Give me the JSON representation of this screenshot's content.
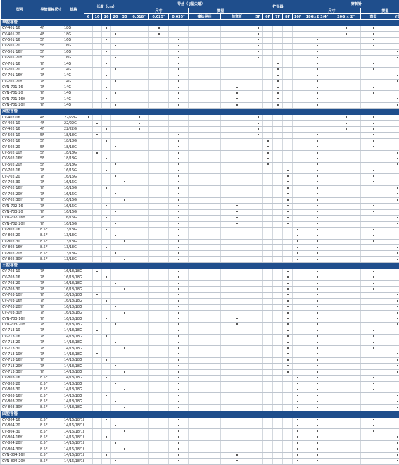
{
  "header": {
    "model": "型号",
    "fr": "导管规格尺寸",
    "gauge": "规格",
    "length": "长度（cm）",
    "guidewire": "导丝（-J型尖端）",
    "size": "尺寸",
    "type": "类型",
    "dilator": "扩张器",
    "needle": "穿刺针",
    "needle_size": "尺寸",
    "needle_type": "类型",
    "nitinol": "镍钛导丝",
    "kink": "防弯折",
    "len_cols": [
      "6",
      "10",
      "16",
      "20",
      "30"
    ],
    "gw_sizes": [
      "0.018\"",
      "0.025\"",
      "0.035\""
    ],
    "dil_cols": [
      "5F",
      "6F",
      "7F",
      "8F",
      "10F"
    ],
    "needle_sizes": [
      "18G×2 3/4\"",
      "20G × 2\""
    ],
    "needle_types": [
      "直型",
      "Y型"
    ]
  },
  "col_order": [
    "L6",
    "L10",
    "L16",
    "L20",
    "L30",
    "S018",
    "S025",
    "S035",
    "GN",
    "GK",
    "D5",
    "D6",
    "D7",
    "D8",
    "D10",
    "N18",
    "N20",
    "NS",
    "NY"
  ],
  "sections": [
    {
      "title": "单腔导管",
      "rows": [
        {
          "m": "CV-401-16",
          "f": "4F",
          "g": "18G",
          "d": [
            "L16",
            "S025",
            "D5",
            "N20",
            "NS"
          ]
        },
        {
          "m": "CV-401-20",
          "f": "4F",
          "g": "18G",
          "d": [
            "L20",
            "S025",
            "D5",
            "N20",
            "NS"
          ]
        },
        {
          "m": "CV-501-16",
          "f": "5F",
          "g": "16G",
          "d": [
            "L16",
            "S035",
            "D5",
            "N18",
            "NS"
          ]
        },
        {
          "m": "CV-501-20",
          "f": "5F",
          "g": "16G",
          "d": [
            "L20",
            "S035",
            "D5",
            "N18",
            "NS"
          ]
        },
        {
          "m": "CV-501-16Y",
          "f": "5F",
          "g": "16G",
          "d": [
            "L16",
            "S035",
            "D5",
            "N18",
            "NY"
          ]
        },
        {
          "m": "CV-501-20Y",
          "f": "5F",
          "g": "16G",
          "d": [
            "L20",
            "S035",
            "D5",
            "N18",
            "NY"
          ]
        },
        {
          "m": "CV-701-16",
          "f": "7F",
          "g": "14G",
          "d": [
            "L16",
            "S035",
            "D7",
            "N18",
            "NS"
          ]
        },
        {
          "m": "CV-701-20",
          "f": "7F",
          "g": "14G",
          "d": [
            "L20",
            "S035",
            "D7",
            "N18",
            "NS"
          ]
        },
        {
          "m": "CV-701-16Y",
          "f": "7F",
          "g": "14G",
          "d": [
            "L16",
            "S035",
            "D7",
            "N18",
            "NY"
          ]
        },
        {
          "m": "CV-701-20Y",
          "f": "7F",
          "g": "14G",
          "d": [
            "L20",
            "S035",
            "D7",
            "N18",
            "NY"
          ]
        },
        {
          "m": "CVN-701-16",
          "f": "7F",
          "g": "14G",
          "d": [
            "L16",
            "S035",
            "GK",
            "D7",
            "N18",
            "NS"
          ]
        },
        {
          "m": "CVN-701-20",
          "f": "7F",
          "g": "14G",
          "d": [
            "L20",
            "S035",
            "GK",
            "D7",
            "N18",
            "NS"
          ]
        },
        {
          "m": "CVN-701-16Y",
          "f": "7F",
          "g": "14G",
          "d": [
            "L16",
            "S035",
            "GK",
            "D7",
            "N18",
            "NY"
          ]
        },
        {
          "m": "CVN-701-20Y",
          "f": "7F",
          "g": "14G",
          "d": [
            "L20",
            "S035",
            "GK",
            "D7",
            "N18",
            "NY"
          ]
        }
      ]
    },
    {
      "title": "双腔导管",
      "rows": [
        {
          "m": "CV-402-06",
          "f": "4F",
          "g": "22/22G",
          "d": [
            "L6",
            "S018",
            "D5",
            "N20",
            "NS"
          ]
        },
        {
          "m": "CV-402-10",
          "f": "4F",
          "g": "22/22G",
          "d": [
            "L10",
            "S018",
            "D5",
            "N20",
            "NS"
          ]
        },
        {
          "m": "CV-402-16",
          "f": "4F",
          "g": "22/22G",
          "d": [
            "L16",
            "S018",
            "D5",
            "N20",
            "NS"
          ]
        },
        {
          "m": "CV-502-10",
          "f": "5F",
          "g": "18/18G",
          "d": [
            "L10",
            "S035",
            "D5",
            "N18",
            "NS"
          ]
        },
        {
          "m": "CV-502-16",
          "f": "5F",
          "g": "18/18G",
          "d": [
            "L16",
            "S035",
            "D6",
            "N18",
            "NS"
          ]
        },
        {
          "m": "CV-502-20",
          "f": "5F",
          "g": "18/18G",
          "d": [
            "L20",
            "S035",
            "D6",
            "N18",
            "NS"
          ]
        },
        {
          "m": "CV-502-10Y",
          "f": "5F",
          "g": "18/18G",
          "d": [
            "L10",
            "S035",
            "D6",
            "N18",
            "NY"
          ]
        },
        {
          "m": "CV-502-16Y",
          "f": "5F",
          "g": "18/18G",
          "d": [
            "L16",
            "S035",
            "D6",
            "N18",
            "NY"
          ]
        },
        {
          "m": "CV-502-20Y",
          "f": "5F",
          "g": "18/18G",
          "d": [
            "L20",
            "S035",
            "D6",
            "N18",
            "NY"
          ]
        },
        {
          "m": "CV-702-16",
          "f": "7F",
          "g": "16/16G",
          "d": [
            "L16",
            "S035",
            "D8",
            "N18",
            "NS"
          ]
        },
        {
          "m": "CV-702-20",
          "f": "7F",
          "g": "16/16G",
          "d": [
            "L20",
            "S035",
            "D8",
            "N18",
            "NS"
          ]
        },
        {
          "m": "CV-702-30",
          "f": "7F",
          "g": "16/16G",
          "d": [
            "L30",
            "S035",
            "D8",
            "N18",
            "NS"
          ]
        },
        {
          "m": "CV-702-16Y",
          "f": "7F",
          "g": "16/16G",
          "d": [
            "L16",
            "S035",
            "D8",
            "N18",
            "NY"
          ]
        },
        {
          "m": "CV-702-20Y",
          "f": "7F",
          "g": "16/16G",
          "d": [
            "L20",
            "S035",
            "D8",
            "N18",
            "NY"
          ]
        },
        {
          "m": "CV-702-30Y",
          "f": "7F",
          "g": "16/16G",
          "d": [
            "L30",
            "S035",
            "D8",
            "N18",
            "NY"
          ]
        },
        {
          "m": "CVN-702-16",
          "f": "7F",
          "g": "16/16G",
          "d": [
            "L16",
            "S035",
            "GK",
            "D8",
            "N18",
            "NS"
          ]
        },
        {
          "m": "CVN-703-20",
          "f": "7F",
          "g": "16/16G",
          "d": [
            "L20",
            "S035",
            "GK",
            "D8",
            "N18",
            "NS"
          ]
        },
        {
          "m": "CVN-702-16Y",
          "f": "7F",
          "g": "16/16G",
          "d": [
            "L16",
            "S035",
            "GK",
            "D8",
            "N18",
            "NY"
          ]
        },
        {
          "m": "CVN-702-20Y",
          "f": "7F",
          "g": "16/16G",
          "d": [
            "L20",
            "S035",
            "GK",
            "D8",
            "N18",
            "NY"
          ]
        },
        {
          "m": "CV-802-16",
          "f": "8.5F",
          "g": "13/13G",
          "d": [
            "L16",
            "S035",
            "D10",
            "N18",
            "NS"
          ]
        },
        {
          "m": "CV-802-20",
          "f": "8.5F",
          "g": "13/13G",
          "d": [
            "L20",
            "S035",
            "D10",
            "N18",
            "NS"
          ]
        },
        {
          "m": "CV-802-30",
          "f": "8.5F",
          "g": "13/13G",
          "d": [
            "L30",
            "S035",
            "D10",
            "N18",
            "NS"
          ]
        },
        {
          "m": "CV-802-16Y",
          "f": "8.5F",
          "g": "13/13G",
          "d": [
            "L16",
            "S035",
            "D10",
            "N18",
            "NY"
          ]
        },
        {
          "m": "CV-802-20Y",
          "f": "8.5F",
          "g": "13/13G",
          "d": [
            "L20",
            "S035",
            "D10",
            "N18",
            "NY"
          ]
        },
        {
          "m": "CV-802-30Y",
          "f": "8.5F",
          "g": "13/13G",
          "d": [
            "L30",
            "S035",
            "D10",
            "N18",
            "NY"
          ]
        }
      ]
    },
    {
      "title": "三腔导管",
      "rows": [
        {
          "m": "CV-703-10",
          "f": "7F",
          "g": "16/18/18G",
          "d": [
            "L10",
            "S035",
            "D8",
            "N18",
            "NS"
          ]
        },
        {
          "m": "CV-703-16",
          "f": "7F",
          "g": "16/18/18G",
          "d": [
            "L16",
            "S035",
            "D8",
            "N18",
            "NS"
          ]
        },
        {
          "m": "CV-703-20",
          "f": "7F",
          "g": "16/18/18G",
          "d": [
            "L20",
            "S035",
            "D8",
            "N18",
            "NS"
          ]
        },
        {
          "m": "CV-703-30",
          "f": "7F",
          "g": "16/18/18G",
          "d": [
            "L30",
            "S035",
            "D8",
            "N18",
            "NS"
          ]
        },
        {
          "m": "CV-703-10Y",
          "f": "7F",
          "g": "16/18/18G",
          "d": [
            "L10",
            "S035",
            "D8",
            "N18",
            "NY"
          ]
        },
        {
          "m": "CV-703-16Y",
          "f": "7F",
          "g": "16/18/18G",
          "d": [
            "L16",
            "S035",
            "D8",
            "N18",
            "NY"
          ]
        },
        {
          "m": "CV-703-20Y",
          "f": "7F",
          "g": "16/18/18G",
          "d": [
            "L20",
            "S035",
            "D8",
            "N18",
            "NY"
          ]
        },
        {
          "m": "CV-703-30Y",
          "f": "7F",
          "g": "16/18/18G",
          "d": [
            "L30",
            "S035",
            "D8",
            "N18",
            "NY"
          ]
        },
        {
          "m": "CVN-703-16Y",
          "f": "7F",
          "g": "16/18/18G",
          "d": [
            "L16",
            "S035",
            "GK",
            "D8",
            "N18",
            "NY"
          ]
        },
        {
          "m": "CVN-703-20Y",
          "f": "7F",
          "g": "16/18/18G",
          "d": [
            "L20",
            "S035",
            "GK",
            "D8",
            "N18",
            "NY"
          ]
        },
        {
          "m": "CV-713-10",
          "f": "7F",
          "g": "14/18/18G",
          "d": [
            "L10",
            "S035",
            "D8",
            "N18",
            "NS"
          ]
        },
        {
          "m": "CV-713-16",
          "f": "7F",
          "g": "14/18/18G",
          "d": [
            "L16",
            "S035",
            "D8",
            "N18",
            "NS"
          ]
        },
        {
          "m": "CV-713-20",
          "f": "7F",
          "g": "14/18/18G",
          "d": [
            "L20",
            "S035",
            "D8",
            "N18",
            "NS"
          ]
        },
        {
          "m": "CV-713-30",
          "f": "7F",
          "g": "14/18/18G",
          "d": [
            "L30",
            "S035",
            "D8",
            "N18",
            "NS"
          ]
        },
        {
          "m": "CV-713-10Y",
          "f": "7F",
          "g": "14/18/18G",
          "d": [
            "L10",
            "S035",
            "D8",
            "N18",
            "NY"
          ]
        },
        {
          "m": "CV-713-16Y",
          "f": "7F",
          "g": "14/18/18G",
          "d": [
            "L16",
            "S035",
            "D8",
            "N18",
            "NY"
          ]
        },
        {
          "m": "CV-713-20Y",
          "f": "7F",
          "g": "14/18/18G",
          "d": [
            "L20",
            "S035",
            "D8",
            "N18",
            "NY"
          ]
        },
        {
          "m": "CV-713-30Y",
          "f": "7F",
          "g": "14/18/18G",
          "d": [
            "L30",
            "S035",
            "D8",
            "N18",
            "NY"
          ]
        },
        {
          "m": "CV-803-16",
          "f": "8.5F",
          "g": "14/18/18G",
          "d": [
            "L16",
            "S035",
            "D10",
            "N18",
            "NS"
          ]
        },
        {
          "m": "CV-803-20",
          "f": "8.5F",
          "g": "14/18/18G",
          "d": [
            "L20",
            "S035",
            "D10",
            "N18",
            "NS"
          ]
        },
        {
          "m": "CV-803-30",
          "f": "8.5F",
          "g": "14/18/18G",
          "d": [
            "L30",
            "S035",
            "D10",
            "N18",
            "NS"
          ]
        },
        {
          "m": "CV-803-16Y",
          "f": "8.5F",
          "g": "14/18/18G",
          "d": [
            "L16",
            "S035",
            "D10",
            "N18",
            "NY"
          ]
        },
        {
          "m": "CV-803-20Y",
          "f": "8.5F",
          "g": "14/18/18G",
          "d": [
            "L20",
            "S035",
            "D10",
            "N18",
            "NY"
          ]
        },
        {
          "m": "CV-803-30Y",
          "f": "8.5F",
          "g": "14/18/18G",
          "d": [
            "L30",
            "S035",
            "D10",
            "N18",
            "NY"
          ]
        }
      ]
    },
    {
      "title": "四腔导管",
      "rows": [
        {
          "m": "CV-804-16",
          "f": "8.5F",
          "g": "14/16/18/18G",
          "d": [
            "L16",
            "S035",
            "D10",
            "N18",
            "NS"
          ]
        },
        {
          "m": "CV-804-20",
          "f": "8.5F",
          "g": "14/16/18/18G",
          "d": [
            "L20",
            "S035",
            "D10",
            "N18",
            "NS"
          ]
        },
        {
          "m": "CV-804-30",
          "f": "8.5F",
          "g": "14/16/18/18G",
          "d": [
            "L30",
            "S035",
            "D10",
            "N18",
            "NS"
          ]
        },
        {
          "m": "CV-804-16Y",
          "f": "8.5F",
          "g": "14/16/18/18G",
          "d": [
            "L16",
            "S035",
            "D10",
            "N18",
            "NY"
          ]
        },
        {
          "m": "CV-804-20Y",
          "f": "8.5F",
          "g": "14/16/18/18G",
          "d": [
            "L20",
            "S035",
            "D10",
            "N18",
            "NY"
          ]
        },
        {
          "m": "CV-804-30Y",
          "f": "8.5F",
          "g": "14/16/18/18G",
          "d": [
            "L30",
            "S035",
            "D10",
            "N18",
            "NY"
          ]
        },
        {
          "m": "CVN-804-16Y",
          "f": "8.5F",
          "g": "14/16/18/18G",
          "d": [
            "L16",
            "S035",
            "GK",
            "D10",
            "N18",
            "NY"
          ]
        },
        {
          "m": "CVN-804-20Y",
          "f": "8.5F",
          "g": "14/16/18/18G",
          "d": [
            "L20",
            "S035",
            "GK",
            "D10",
            "N18",
            "NY"
          ]
        }
      ]
    }
  ]
}
